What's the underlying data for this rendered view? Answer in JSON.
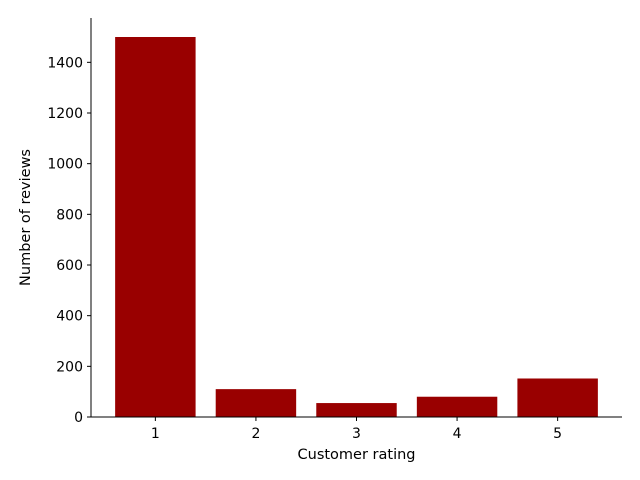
{
  "chart_data": {
    "type": "bar",
    "title": "",
    "xlabel": "Customer rating",
    "ylabel": "Number of reviews",
    "categories": [
      "1",
      "2",
      "3",
      "4",
      "5"
    ],
    "values": [
      1500,
      110,
      55,
      80,
      152
    ],
    "ylim": [
      0,
      1575
    ],
    "yticks": [
      0,
      200,
      400,
      600,
      800,
      1000,
      1200,
      1400
    ],
    "bar_color": "#990000",
    "grid": false,
    "legend": "none",
    "spines": [
      "left",
      "bottom"
    ]
  }
}
